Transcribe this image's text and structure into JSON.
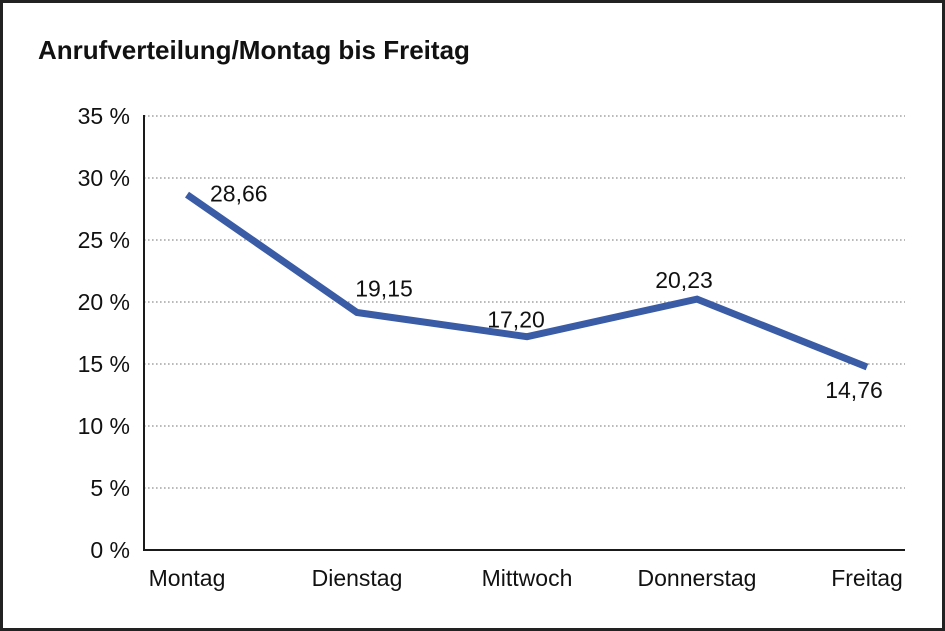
{
  "chart_data": {
    "type": "line",
    "title": "Anrufverteilung/Montag bis Freitag",
    "categories": [
      "Montag",
      "Dienstag",
      "Mittwoch",
      "Donnerstag",
      "Freitag"
    ],
    "values": [
      28.66,
      19.15,
      17.2,
      20.23,
      14.76
    ],
    "value_labels": [
      "28,66",
      "19,15",
      "17,20",
      "20,23",
      "14,76"
    ],
    "series_name": "Anrufverteilung",
    "xlabel": "",
    "ylabel": "",
    "ylim": [
      0,
      35
    ],
    "y_ticks": [
      {
        "value": 0,
        "label": "0 %"
      },
      {
        "value": 5,
        "label": "5 %"
      },
      {
        "value": 10,
        "label": "10 %"
      },
      {
        "value": 15,
        "label": "15 %"
      },
      {
        "value": 20,
        "label": "20 %"
      },
      {
        "value": 25,
        "label": "25 %"
      },
      {
        "value": 30,
        "label": "30 %"
      },
      {
        "value": 35,
        "label": "35 %"
      }
    ],
    "grid": "horizontal-dotted",
    "legend_position": "none",
    "colors": {
      "line": "#3A5BA5",
      "axis": "#1a1a1a",
      "grid": "#909090",
      "text": "#111111",
      "background": "#ffffff",
      "frame_border": "#222222"
    }
  }
}
